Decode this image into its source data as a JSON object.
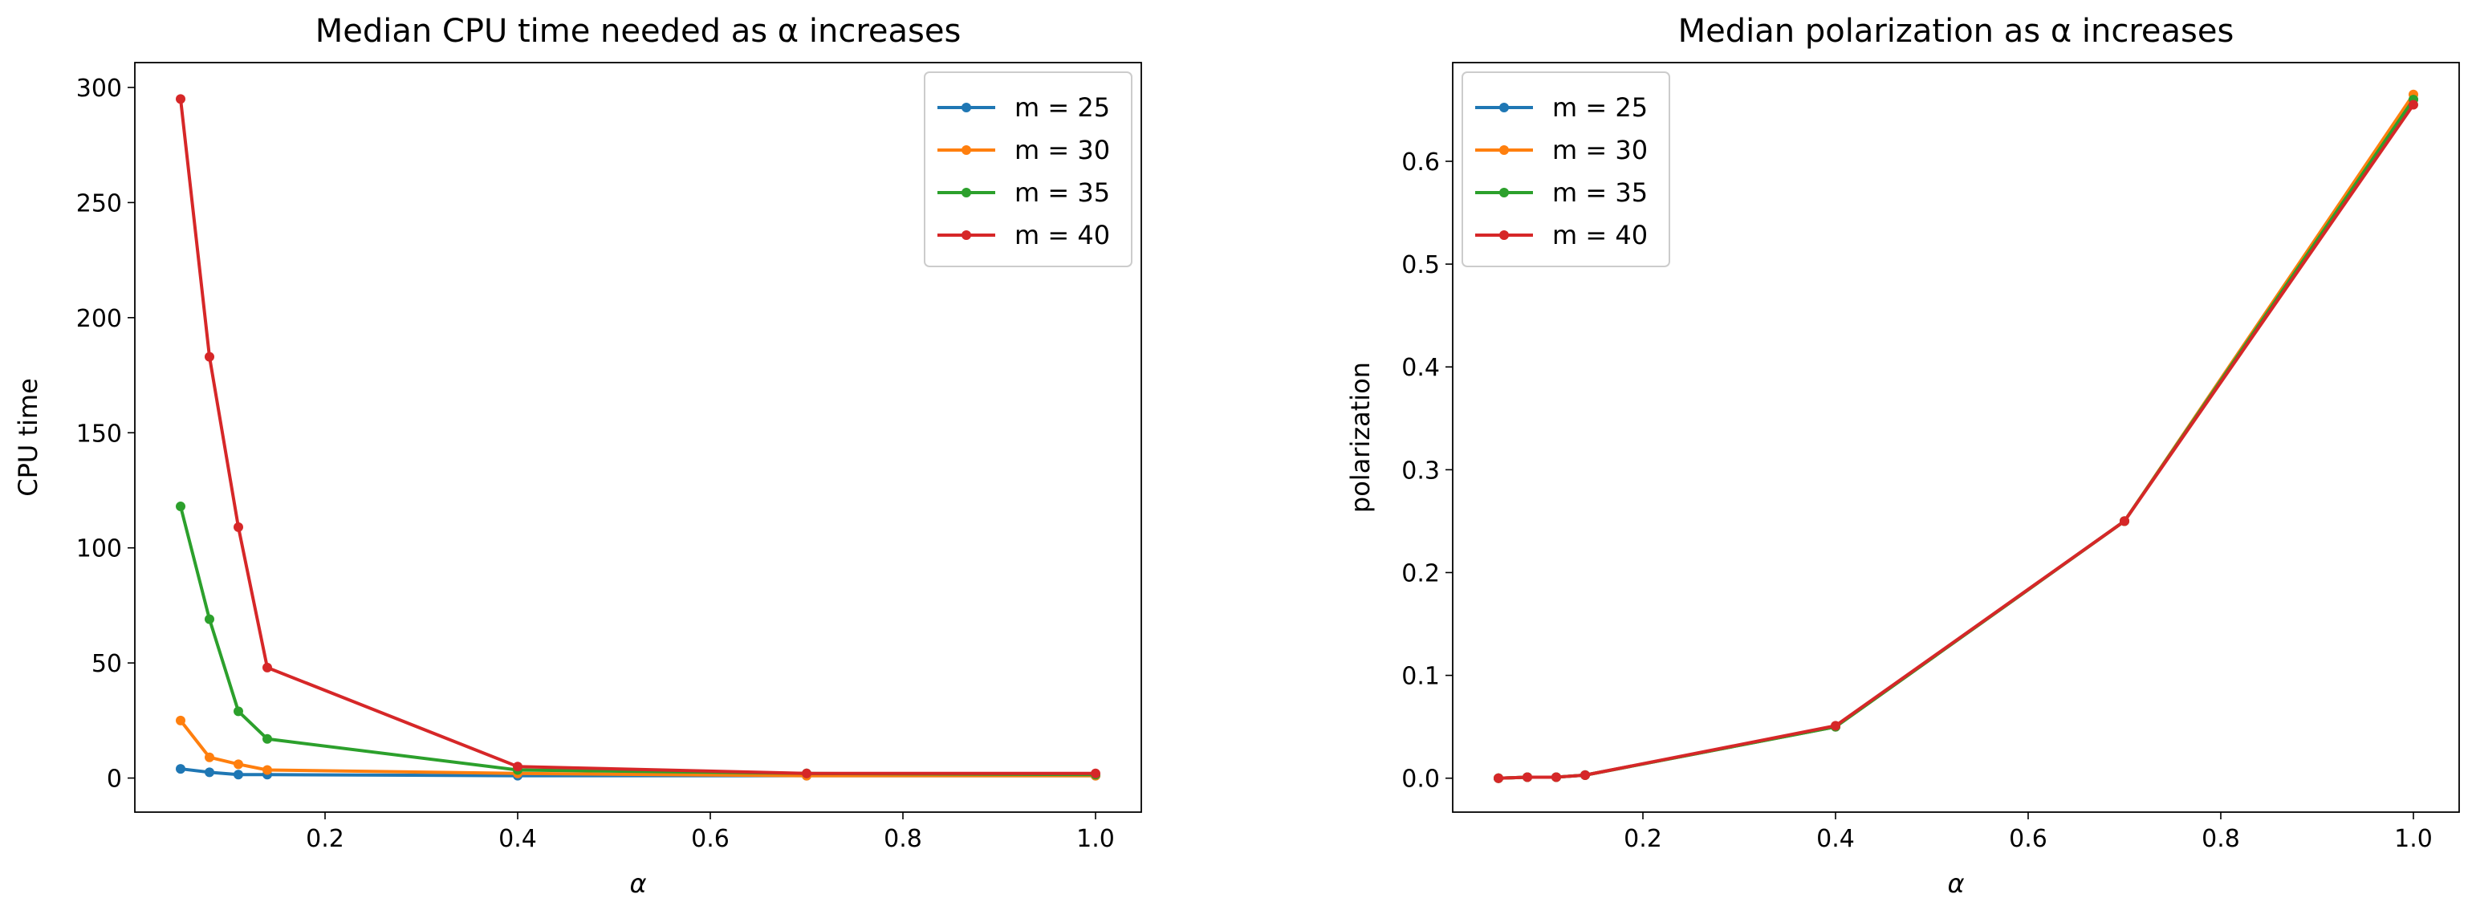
{
  "chart_data": [
    {
      "type": "line",
      "title": "Median CPU time needed as α increases",
      "xlabel": "α",
      "ylabel": "CPU time",
      "xlim": [
        0.0025,
        1.0475
      ],
      "ylim": [
        -14.8,
        310.8
      ],
      "xticks": [
        0.2,
        0.4,
        0.6,
        0.8,
        1.0
      ],
      "xtick_labels": [
        "0.2",
        "0.4",
        "0.6",
        "0.8",
        "1.0"
      ],
      "yticks": [
        0,
        50,
        100,
        150,
        200,
        250,
        300
      ],
      "ytick_labels": [
        "0",
        "50",
        "100",
        "150",
        "200",
        "250",
        "300"
      ],
      "legend_position": "upper right",
      "x": [
        0.05,
        0.08,
        0.11,
        0.14,
        0.4,
        0.7,
        1.0
      ],
      "series": [
        {
          "name": "m = 25",
          "color": "#1f77b4",
          "values": [
            4,
            2.5,
            1.5,
            1.5,
            1,
            1,
            1
          ]
        },
        {
          "name": "m = 30",
          "color": "#ff7f0e",
          "values": [
            25,
            9,
            6,
            3.5,
            2,
            1,
            1
          ]
        },
        {
          "name": "m = 35",
          "color": "#2ca02c",
          "values": [
            118,
            69,
            29,
            17,
            3.5,
            2,
            1.5
          ]
        },
        {
          "name": "m = 40",
          "color": "#d62728",
          "values": [
            295,
            183,
            109,
            48,
            5,
            2,
            2
          ]
        }
      ]
    },
    {
      "type": "line",
      "title": "Median polarization as α increases",
      "xlabel": "α",
      "ylabel": "polarization",
      "xlim": [
        0.0025,
        1.0475
      ],
      "ylim": [
        -0.033,
        0.696
      ],
      "xticks": [
        0.2,
        0.4,
        0.6,
        0.8,
        1.0
      ],
      "xtick_labels": [
        "0.2",
        "0.4",
        "0.6",
        "0.8",
        "1.0"
      ],
      "yticks": [
        0.0,
        0.1,
        0.2,
        0.3,
        0.4,
        0.5,
        0.6
      ],
      "ytick_labels": [
        "0.0",
        "0.1",
        "0.2",
        "0.3",
        "0.4",
        "0.5",
        "0.6"
      ],
      "legend_position": "upper left",
      "x": [
        0.05,
        0.08,
        0.11,
        0.14,
        0.4,
        0.7,
        1.0
      ],
      "series": [
        {
          "name": "m = 25",
          "color": "#1f77b4",
          "values": [
            0.0,
            0.001,
            0.001,
            0.003,
            0.05,
            0.25,
            0.66
          ]
        },
        {
          "name": "m = 30",
          "color": "#ff7f0e",
          "values": [
            0.0,
            0.001,
            0.001,
            0.003,
            0.05,
            0.25,
            0.665
          ]
        },
        {
          "name": "m = 35",
          "color": "#2ca02c",
          "values": [
            0.0,
            0.001,
            0.001,
            0.003,
            0.05,
            0.25,
            0.66
          ]
        },
        {
          "name": "m = 40",
          "color": "#d62728",
          "values": [
            0.0,
            0.001,
            0.001,
            0.003,
            0.051,
            0.25,
            0.655
          ]
        }
      ]
    }
  ]
}
